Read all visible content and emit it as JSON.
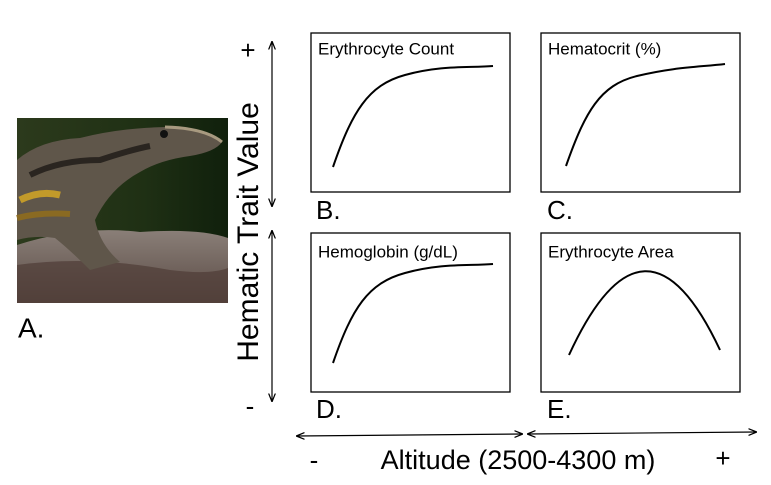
{
  "figure": {
    "photo_label": "A.",
    "y_axis": {
      "label": "Hematic Trait Value",
      "high": "+",
      "low": "-"
    },
    "x_axis": {
      "label": "Altitude (2500-4300 m)",
      "low": "-",
      "high": "+"
    },
    "panels": [
      {
        "letter": "B.",
        "title": "Erythrocyte Count"
      },
      {
        "letter": "C.",
        "title": "Hematocrit (%)"
      },
      {
        "letter": "D.",
        "title": "Hemoglobin (g/dL)"
      },
      {
        "letter": "E.",
        "title": "Erythrocyte Area"
      }
    ]
  }
}
